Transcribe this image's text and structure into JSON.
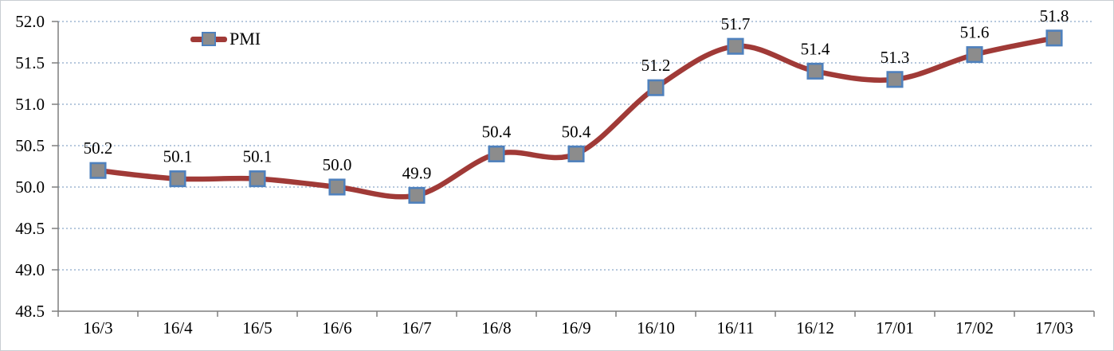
{
  "chart_data": {
    "type": "line",
    "title": "",
    "xlabel": "",
    "ylabel": "",
    "categories": [
      "16/3",
      "16/4",
      "16/5",
      "16/6",
      "16/7",
      "16/8",
      "16/9",
      "16/10",
      "16/11",
      "16/12",
      "17/01",
      "17/02",
      "17/03"
    ],
    "series": [
      {
        "name": "PMI",
        "values": [
          50.2,
          50.1,
          50.1,
          50.0,
          49.9,
          50.4,
          50.4,
          51.2,
          51.7,
          51.4,
          51.3,
          51.6,
          51.8
        ],
        "data_labels": [
          "50.2",
          "50.1",
          "50.1",
          "50.0",
          "49.9",
          "50.4",
          "50.4",
          "51.2",
          "51.7",
          "51.4",
          "51.3",
          "51.6",
          "51.8"
        ]
      }
    ],
    "ylim": [
      48.5,
      52.0
    ],
    "ytick_step": 0.5,
    "ytick_labels": [
      "48.5",
      "49.0",
      "49.5",
      "50.0",
      "50.5",
      "51.0",
      "51.5",
      "52.0"
    ],
    "grid": "horizontal-dotted",
    "line_style": "smooth",
    "marker_shape": "square",
    "legend_position": "inside-top-left",
    "colors": {
      "line": "#A03A37",
      "marker_fill": "#8C8C8C",
      "marker_border": "#4F81BD",
      "gridline": "#B6C8DD",
      "axis": "#7F7F7F",
      "text": "#000000",
      "background": "#FFFFFF",
      "frame_border": "#C9CDD2"
    }
  }
}
